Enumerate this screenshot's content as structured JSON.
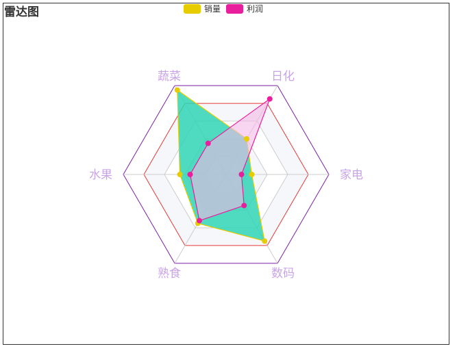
{
  "chart_data": {
    "type": "radar",
    "title": "雷达图",
    "indicators": [
      {
        "name": "家电",
        "max": 100
      },
      {
        "name": "日化",
        "max": 100
      },
      {
        "name": "蔬菜",
        "max": 100
      },
      {
        "name": "水果",
        "max": 100
      },
      {
        "name": "熟食",
        "max": 100
      },
      {
        "name": "数码",
        "max": 100
      }
    ],
    "series": [
      {
        "name": "销量",
        "color": "#e6cc00",
        "fill": "#2fd5b5",
        "values": [
          25,
          40,
          95,
          45,
          55,
          75
        ]
      },
      {
        "name": "利润",
        "color": "#e91e9c",
        "fill": "#f4b9e6",
        "values": [
          15,
          85,
          35,
          35,
          52,
          35
        ]
      }
    ],
    "legend_position": "top-center",
    "label_color": "#c8a4e6",
    "split_line_colors": [
      "#cccccc",
      "#cccccc",
      "#cccccc",
      "#e53935",
      "#7b1fa2"
    ],
    "split_area_colors": [
      "#ffffff",
      "#f6f7fb"
    ]
  }
}
